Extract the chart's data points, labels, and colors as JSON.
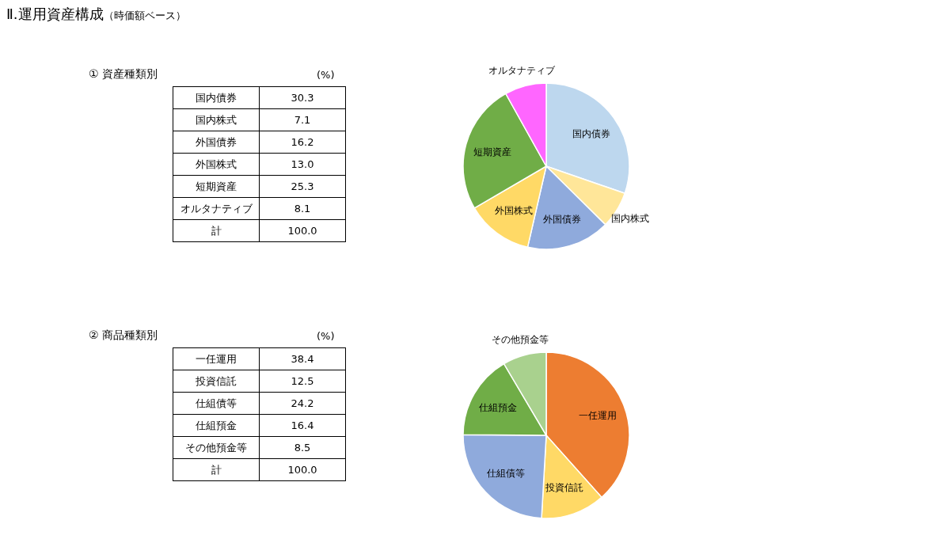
{
  "chart_data": [
    {
      "type": "other",
      "title": "Ⅱ.運用資産構成",
      "subtitle": "（時価額ベース）"
    },
    {
      "type": "other",
      "title": "①  資産種類別",
      "annotations": [
        "(%)",
        "国内債券",
        "30.3",
        "国内株式",
        "7.1",
        "外国債券",
        "16.2",
        "外国株式",
        "13.0",
        "短期資産",
        "25.3",
        "オルタナティブ",
        "8.1",
        "計",
        "100.0"
      ]
    },
    {
      "type": "pie",
      "categories": [
        "国内債券",
        "国内株式",
        "外国債券",
        "外国株式",
        "短期資産",
        "オルタナティブ"
      ],
      "values": [
        30.3,
        7.1,
        16.2,
        13.0,
        25.3,
        8.1
      ],
      "colors": [
        "#bdd7ee",
        "#ffe699",
        "#8faadc",
        "#ffd966",
        "#70ad47",
        "#ff66ff"
      ]
    },
    {
      "type": "other",
      "title": "②  商品種類別",
      "annotations": [
        "(%)",
        "一任運用",
        "38.4",
        "投資信託",
        "12.5",
        "仕組債等",
        "24.2",
        "仕組預金",
        "16.4",
        "その他預金等",
        "8.5",
        "計",
        "100.0"
      ]
    },
    {
      "type": "pie",
      "categories": [
        "一任運用",
        "投資信託",
        "仕組債等",
        "仕組預金",
        "その他預金等"
      ],
      "values": [
        38.4,
        12.5,
        24.2,
        16.4,
        8.5
      ],
      "colors": [
        "#ed7d31",
        "#ffd966",
        "#8faadc",
        "#70ad47",
        "#a9d18e"
      ]
    }
  ]
}
